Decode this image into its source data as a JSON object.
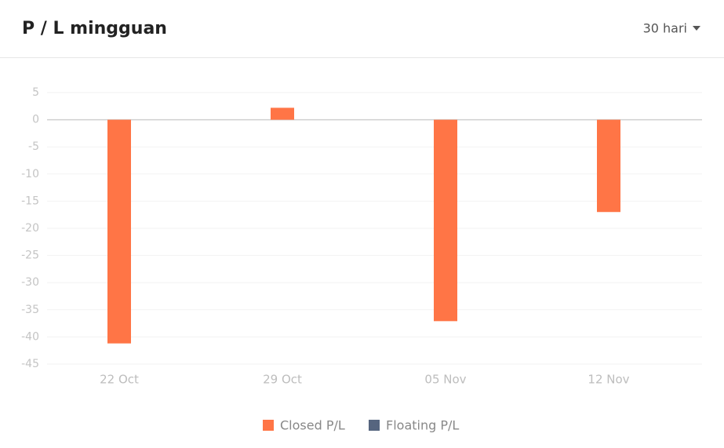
{
  "header": {
    "title": "P / L mingguan",
    "period": "30 hari"
  },
  "chart_data": {
    "type": "bar",
    "categories": [
      "22 Oct",
      "29 Oct",
      "05 Nov",
      "12 Nov"
    ],
    "series": [
      {
        "name": "Closed P/L",
        "color": "#ff7546",
        "values": [
          -41.2,
          2.2,
          -37.1,
          -17.0
        ]
      },
      {
        "name": "Floating P/L",
        "color": "#56657f",
        "values": [
          null,
          null,
          null,
          null
        ]
      }
    ],
    "ylim": [
      -45,
      5
    ],
    "yticks": [
      5,
      0,
      -5,
      -10,
      -15,
      -20,
      -25,
      -30,
      -35,
      -40,
      -45
    ],
    "grid": true,
    "legend": "bottom"
  }
}
